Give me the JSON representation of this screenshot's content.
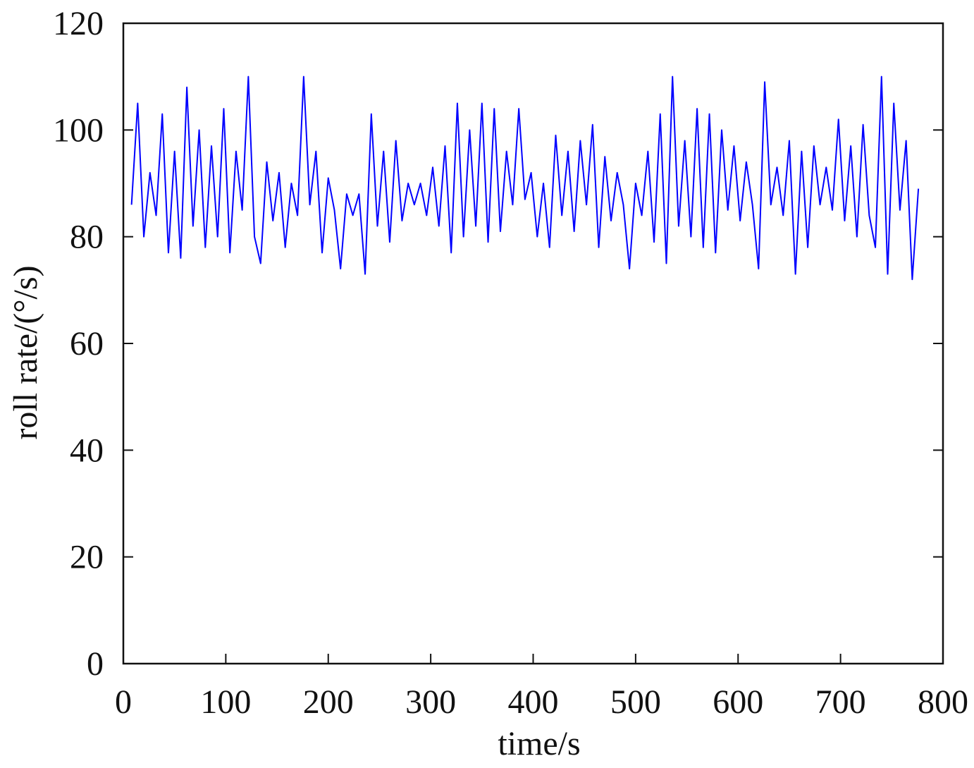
{
  "chart_data": {
    "type": "line",
    "xlabel": "time/s",
    "ylabel": "roll rate/(°/s)",
    "xlim": [
      0,
      800
    ],
    "xticks": [
      0,
      100,
      200,
      300,
      400,
      500,
      600,
      700,
      800
    ],
    "ylim": [
      0,
      120
    ],
    "yticks": [
      0,
      20,
      40,
      60,
      80,
      100,
      120
    ],
    "series": [
      {
        "color": "#0000ff",
        "x": [
          8,
          14,
          20,
          26,
          32,
          38,
          44,
          50,
          56,
          62,
          68,
          74,
          80,
          86,
          92,
          98,
          104,
          110,
          116,
          122,
          128,
          134,
          140,
          146,
          152,
          158,
          164,
          170,
          176,
          182,
          188,
          194,
          200,
          206,
          212,
          218,
          224,
          230,
          236,
          242,
          248,
          254,
          260,
          266,
          272,
          278,
          284,
          290,
          296,
          302,
          308,
          314,
          320,
          326,
          332,
          338,
          344,
          350,
          356,
          362,
          368,
          374,
          380,
          386,
          392,
          398,
          404,
          410,
          416,
          422,
          428,
          434,
          440,
          446,
          452,
          458,
          464,
          470,
          476,
          482,
          488,
          494,
          500,
          506,
          512,
          518,
          524,
          530,
          536,
          542,
          548,
          554,
          560,
          566,
          572,
          578,
          584,
          590,
          596,
          602,
          608,
          614,
          620,
          626,
          632,
          638,
          644,
          650,
          656,
          662,
          668,
          674,
          680,
          686,
          692,
          698,
          704,
          710,
          716,
          722,
          728,
          734,
          740,
          746,
          752,
          758,
          764,
          770,
          776
        ],
        "values": [
          86,
          105,
          80,
          92,
          84,
          103,
          77,
          96,
          76,
          108,
          82,
          100,
          78,
          97,
          80,
          104,
          77,
          96,
          85,
          110,
          80,
          75,
          94,
          83,
          92,
          78,
          90,
          84,
          110,
          86,
          96,
          77,
          91,
          85,
          74,
          88,
          84,
          88,
          73,
          103,
          82,
          96,
          79,
          98,
          83,
          90,
          86,
          90,
          84,
          93,
          82,
          97,
          77,
          105,
          80,
          100,
          82,
          105,
          79,
          104,
          81,
          96,
          86,
          104,
          87,
          92,
          80,
          90,
          78,
          99,
          84,
          96,
          81,
          98,
          86,
          101,
          78,
          95,
          83,
          92,
          86,
          74,
          90,
          84,
          96,
          79,
          103,
          75,
          110,
          82,
          98,
          80,
          104,
          78,
          103,
          77,
          100,
          85,
          97,
          83,
          94,
          86,
          74,
          109,
          86,
          93,
          84,
          98,
          73,
          96,
          78,
          97,
          86,
          93,
          85,
          102,
          83,
          97,
          80,
          101,
          84,
          78,
          110,
          73,
          105,
          85,
          98,
          72,
          89
        ]
      }
    ]
  }
}
